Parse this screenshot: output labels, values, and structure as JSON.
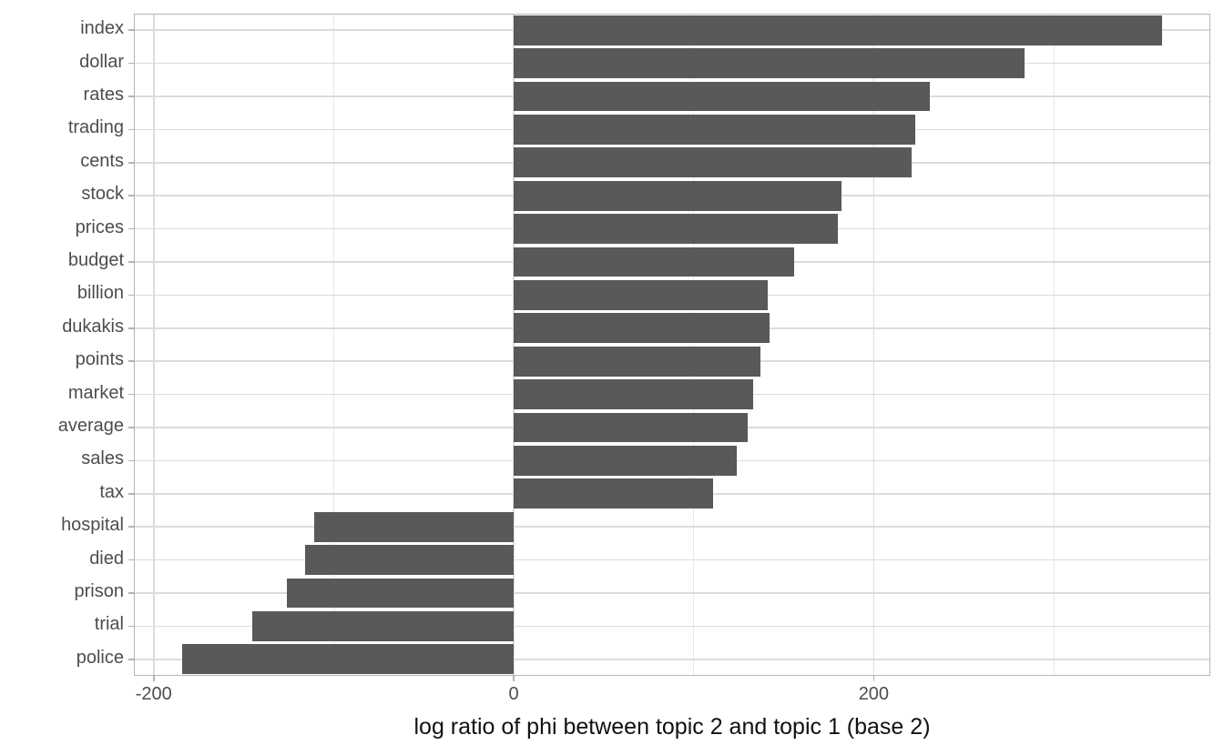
{
  "chart_data": {
    "type": "bar",
    "orientation": "horizontal",
    "title": "",
    "xlabel": "log ratio of phi between topic 2 and topic 1 (base 2)",
    "ylabel": "",
    "categories": [
      "index",
      "dollar",
      "rates",
      "trading",
      "cents",
      "stock",
      "prices",
      "budget",
      "billion",
      "dukakis",
      "points",
      "market",
      "average",
      "sales",
      "tax",
      "hospital",
      "died",
      "prison",
      "trial",
      "police"
    ],
    "values": [
      360,
      284,
      231,
      223,
      221,
      182,
      180,
      156,
      141,
      142,
      137,
      133,
      130,
      124,
      111,
      -111,
      -116,
      -126,
      -145,
      -184
    ],
    "xlim": [
      -211,
      387
    ],
    "x_major_ticks": [
      -200,
      0,
      200
    ],
    "x_tick_labels": [
      "-200",
      "0",
      "200"
    ],
    "x_minor_ticks": [
      -100,
      100,
      300
    ],
    "grid": "on",
    "legend": "none",
    "colors": {
      "bar_fill": "#595959",
      "grid_major": "#dcdcdc",
      "grid_minor": "#e9e9e9",
      "panel_border": "#b5b5b5",
      "tick_mark": "#b3b3b3",
      "axis_text": "#4d4d4d",
      "axis_title": "#111111",
      "background": "#ffffff"
    }
  }
}
